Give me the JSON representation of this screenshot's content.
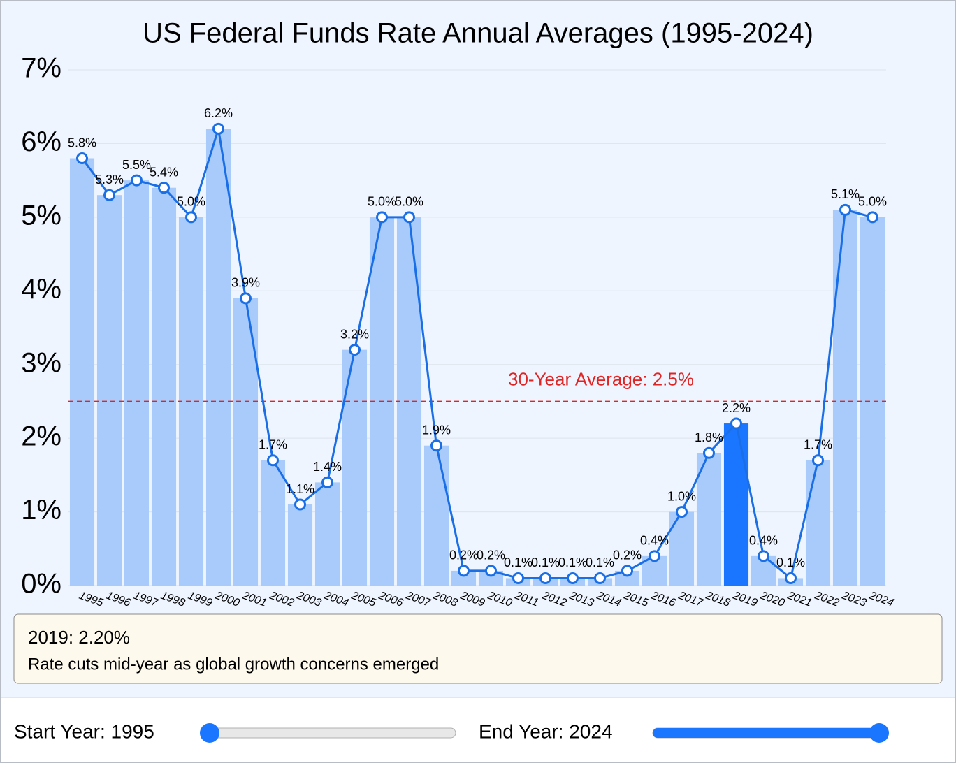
{
  "chart_data": {
    "type": "bar-line",
    "title": "US Federal Funds Rate Annual Averages (1995-2024)",
    "categories": [
      "1995",
      "1996",
      "1997",
      "1998",
      "1999",
      "2000",
      "2001",
      "2002",
      "2003",
      "2004",
      "2005",
      "2006",
      "2007",
      "2008",
      "2009",
      "2010",
      "2011",
      "2012",
      "2013",
      "2014",
      "2015",
      "2016",
      "2017",
      "2018",
      "2019",
      "2020",
      "2021",
      "2022",
      "2023",
      "2024"
    ],
    "values": [
      5.8,
      5.3,
      5.5,
      5.4,
      5.0,
      6.2,
      3.9,
      1.7,
      1.1,
      1.4,
      3.2,
      5.0,
      5.0,
      1.9,
      0.2,
      0.2,
      0.1,
      0.1,
      0.1,
      0.1,
      0.2,
      0.4,
      1.0,
      1.8,
      2.2,
      0.4,
      0.1,
      1.7,
      5.1,
      5.0
    ],
    "value_labels": [
      "5.8%",
      "5.3%",
      "5.5%",
      "5.4%",
      "5.0%",
      "6.2%",
      "3.9%",
      "1.7%",
      "1.1%",
      "1.4%",
      "3.2%",
      "5.0%",
      "5.0%",
      "1.9%",
      "0.2%",
      "0.2%",
      "0.1%",
      "0.1%",
      "0.1%",
      "0.1%",
      "0.2%",
      "0.4%",
      "1.0%",
      "1.8%",
      "2.2%",
      "0.4%",
      "0.1%",
      "1.7%",
      "5.1%",
      "5.0%"
    ],
    "bar_color": "#a8cbfb",
    "highlight_color": "#1a75ff",
    "line_color": "#1a6fe6",
    "highlight": "2019",
    "ylim": [
      0,
      7
    ],
    "yticks": [
      {
        "value": 0,
        "label": "0%"
      },
      {
        "value": 1,
        "label": "1%"
      },
      {
        "value": 2,
        "label": "2%"
      },
      {
        "value": 3,
        "label": "3%"
      },
      {
        "value": 4,
        "label": "4%"
      },
      {
        "value": 5,
        "label": "5%"
      },
      {
        "value": 6,
        "label": "6%"
      },
      {
        "value": 7,
        "label": "7%"
      }
    ],
    "grid": true,
    "average": 2.5,
    "average_label": "30-Year Average: 2.5%",
    "average_color": "#e02424"
  },
  "info_box": {
    "title": "2019: 2.20%",
    "text": "Rate cuts mid-year as global growth concerns emerged"
  },
  "controls": [
    {
      "label": "Start Year: 1995",
      "min": 1995,
      "max": 2024,
      "value": 1995
    },
    {
      "label": "End Year: 2024",
      "min": 1995,
      "max": 2024,
      "value": 2024
    }
  ]
}
